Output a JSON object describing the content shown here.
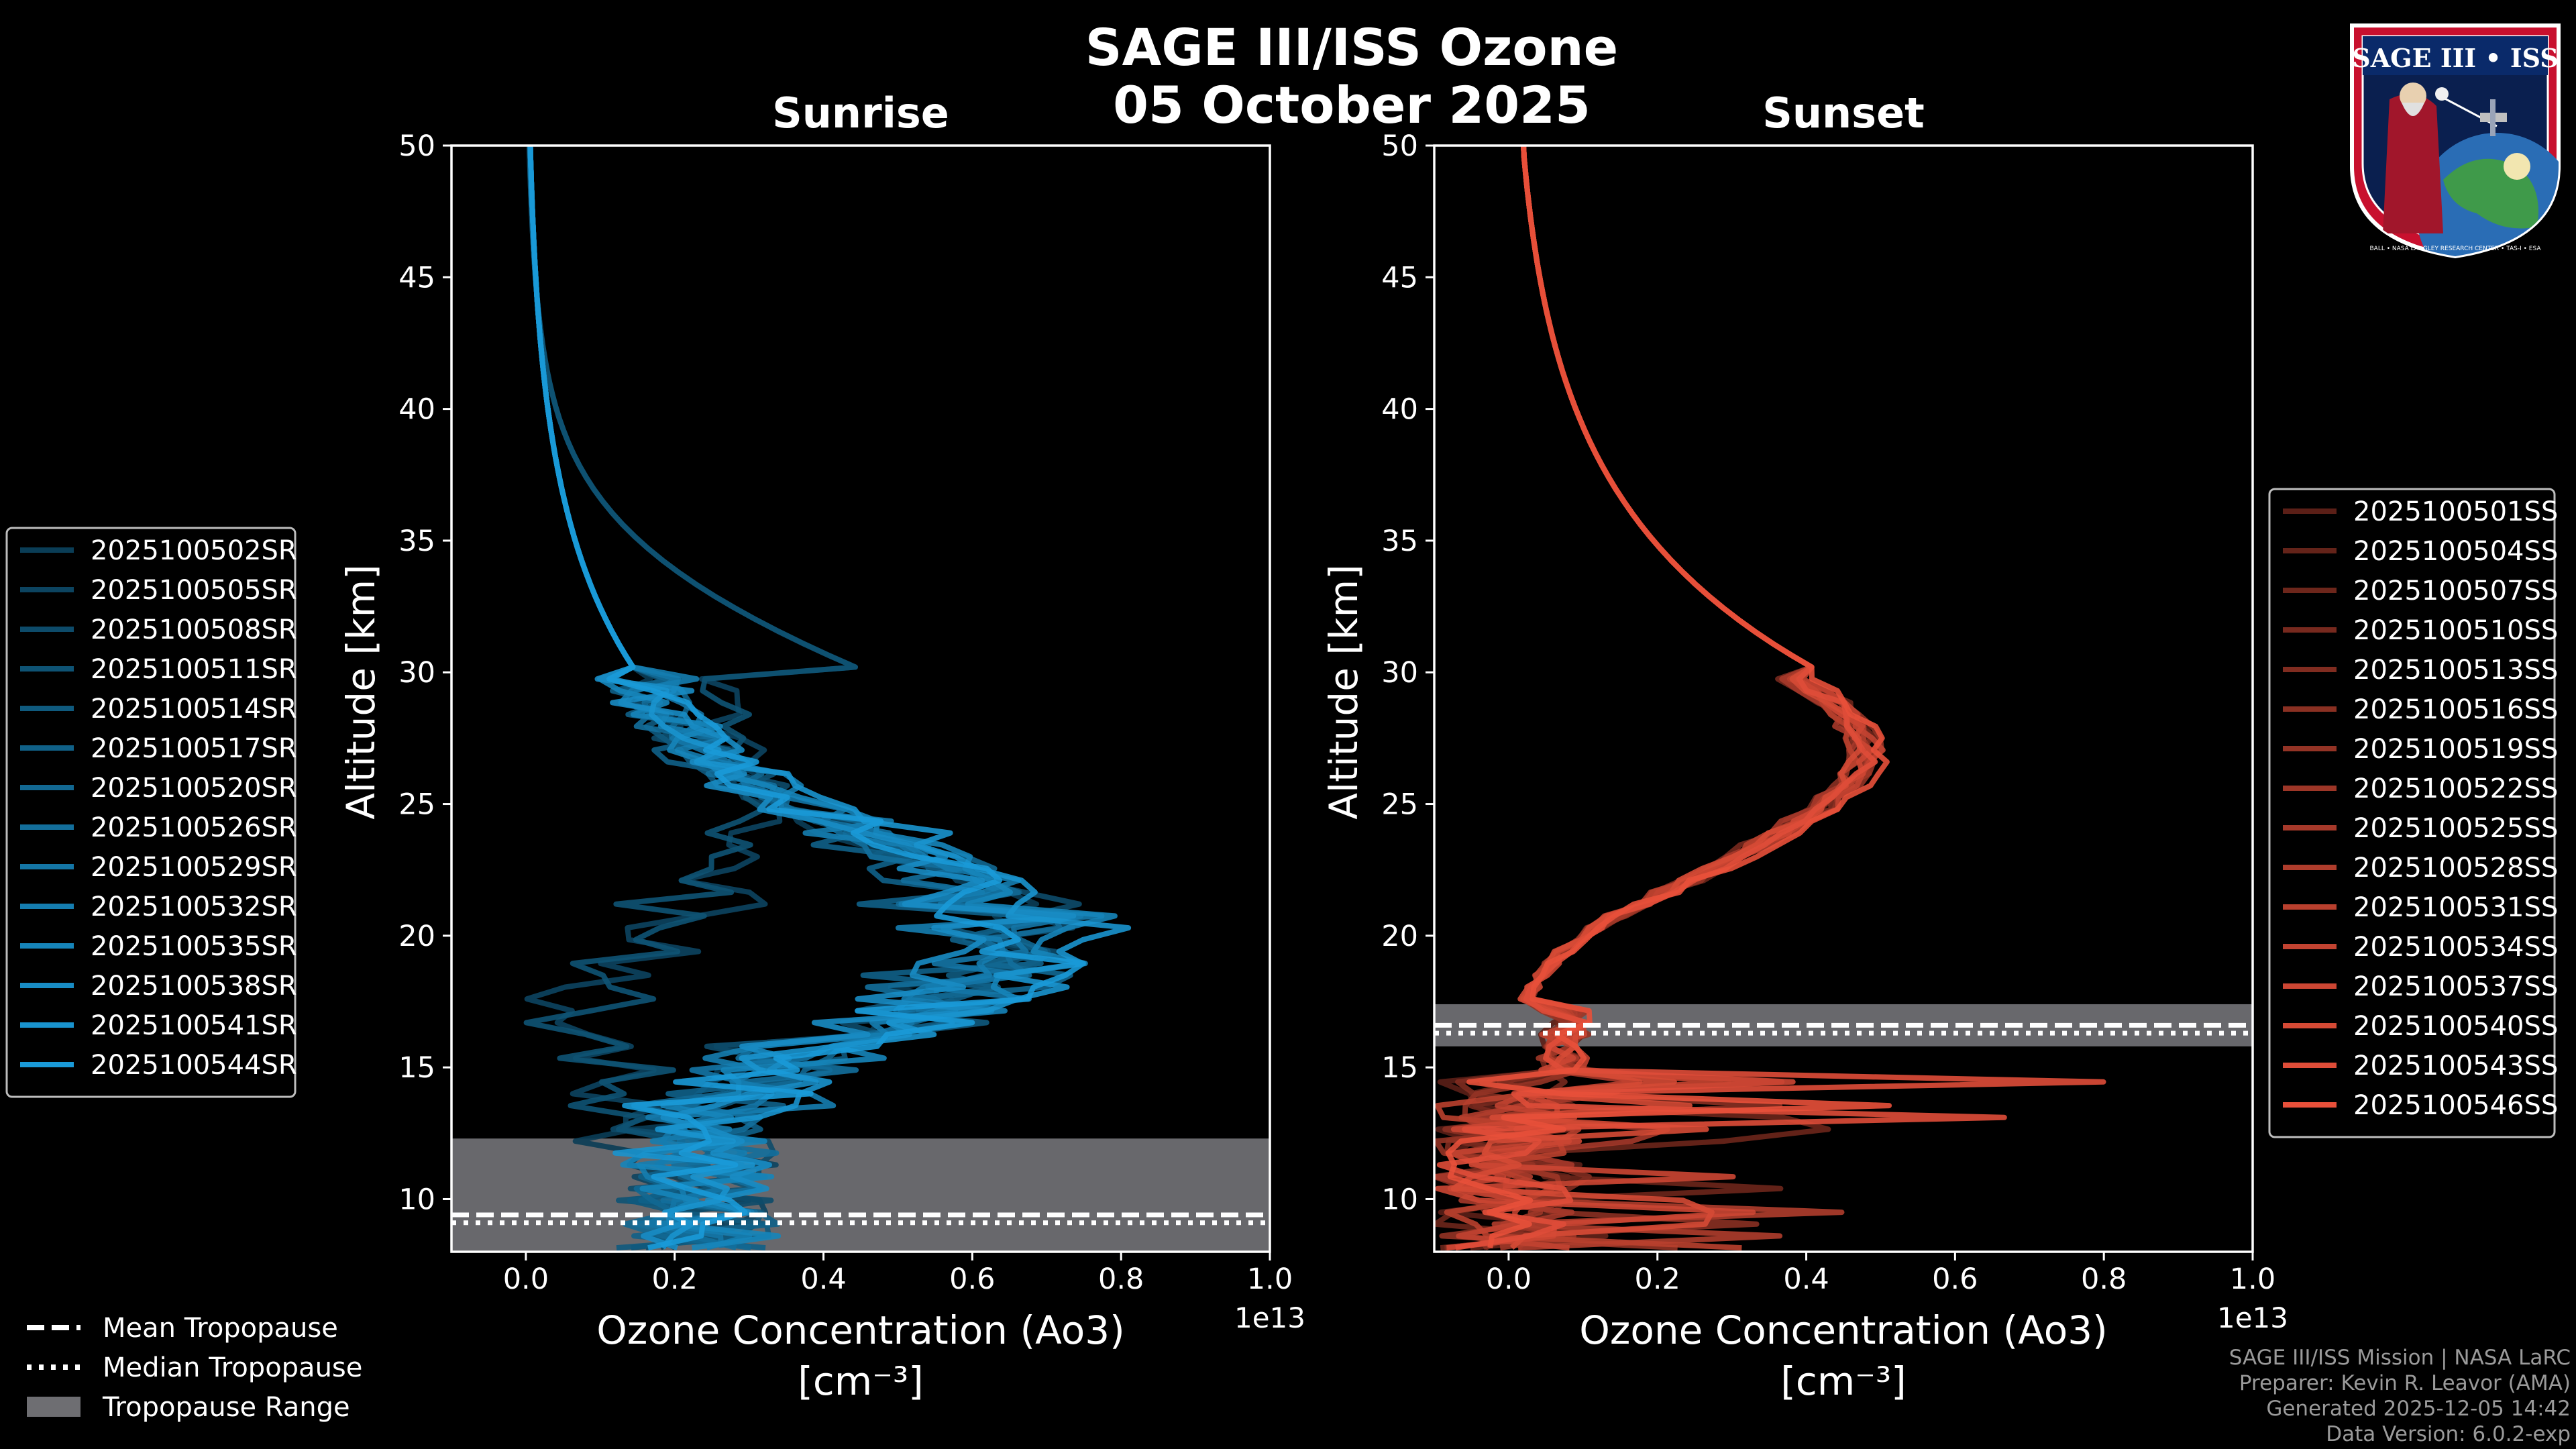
{
  "title_line1": "SAGE III/ISS Ozone",
  "title_line2": "05 October 2025",
  "logo": {
    "name": "SAGE III • ISS",
    "ring_text": "BALL • NASA LANGLEY RESEARCH CENTER • TAS-I • ESA"
  },
  "credits": [
    "SAGE III/ISS Mission | NASA LaRC",
    "Preparer: Kevin R. Leavor (AMA)",
    "Generated 2025-12-05 14:42",
    "Data Version: 6.0.2-exp"
  ],
  "tropopause_legend": [
    {
      "label": "Mean Tropopause",
      "style": "dashed"
    },
    {
      "label": "Median Tropopause",
      "style": "dotted"
    },
    {
      "label": "Tropopause Range",
      "style": "patch"
    }
  ],
  "chart_data": [
    {
      "type": "line",
      "title": "Sunrise",
      "xlabel_line1": "Ozone Concentration (Ao3)",
      "xlabel_line2": "[cm⁻³]",
      "ylabel": "Altitude [km]",
      "x_offset_label": "1e13",
      "xlim": [
        -0.1,
        1.0
      ],
      "ylim": [
        8,
        50
      ],
      "x_ticks": [
        0.0,
        0.2,
        0.4,
        0.6,
        0.8,
        1.0
      ],
      "x_tick_labels": [
        "0.0",
        "0.2",
        "0.4",
        "0.6",
        "0.8",
        "1.0"
      ],
      "y_ticks": [
        10,
        15,
        20,
        25,
        30,
        35,
        40,
        45,
        50
      ],
      "y_tick_labels": [
        "10",
        "15",
        "20",
        "25",
        "30",
        "35",
        "40",
        "45",
        "50"
      ],
      "tropopause": {
        "mean": 9.4,
        "median": 9.1,
        "range": [
          8.0,
          12.3
        ]
      },
      "legend_position": "left",
      "base_color": "#1a9ad8",
      "series": [
        {
          "name": "2025100502SR",
          "profile": "normal",
          "scale": 0.62,
          "noise": 0.06
        },
        {
          "name": "2025100505SR",
          "profile": "low",
          "scale": 0.3,
          "noise": 0.07
        },
        {
          "name": "2025100508SR",
          "profile": "normal",
          "scale": 0.64,
          "noise": 0.08
        },
        {
          "name": "2025100511SR",
          "profile": "low",
          "scale": 0.32,
          "noise": 0.06
        },
        {
          "name": "2025100514SR",
          "profile": "normal",
          "scale": 0.66,
          "noise": 0.07
        },
        {
          "name": "2025100517SR",
          "profile": "normal",
          "scale": 0.6,
          "noise": 0.09
        },
        {
          "name": "2025100520SR",
          "profile": "normal",
          "scale": 0.68,
          "noise": 0.06
        },
        {
          "name": "2025100526SR",
          "profile": "normal",
          "scale": 0.63,
          "noise": 0.08
        },
        {
          "name": "2025100529SR",
          "profile": "normal",
          "scale": 0.67,
          "noise": 0.07
        },
        {
          "name": "2025100532SR",
          "profile": "normal",
          "scale": 0.65,
          "noise": 0.1
        },
        {
          "name": "2025100535SR",
          "profile": "normal",
          "scale": 0.7,
          "noise": 0.07
        },
        {
          "name": "2025100538SR",
          "profile": "normal",
          "scale": 0.62,
          "noise": 0.08
        },
        {
          "name": "2025100541SR",
          "profile": "normal",
          "scale": 0.75,
          "noise": 0.06
        },
        {
          "name": "2025100544SR",
          "profile": "normal",
          "scale": 0.66,
          "noise": 0.07
        }
      ]
    },
    {
      "type": "line",
      "title": "Sunset",
      "xlabel_line1": "Ozone Concentration (Ao3)",
      "xlabel_line2": "[cm⁻³]",
      "ylabel": "Altitude [km]",
      "x_offset_label": "1e13",
      "xlim": [
        -0.1,
        1.0
      ],
      "ylim": [
        8,
        50
      ],
      "x_ticks": [
        0.0,
        0.2,
        0.4,
        0.6,
        0.8,
        1.0
      ],
      "x_tick_labels": [
        "0.0",
        "0.2",
        "0.4",
        "0.6",
        "0.8",
        "1.0"
      ],
      "y_ticks": [
        10,
        15,
        20,
        25,
        30,
        35,
        40,
        45,
        50
      ],
      "y_tick_labels": [
        "10",
        "15",
        "20",
        "25",
        "30",
        "35",
        "40",
        "45",
        "50"
      ],
      "tropopause": {
        "mean": 16.6,
        "median": 16.3,
        "range": [
          15.8,
          17.4
        ]
      },
      "legend_position": "right",
      "base_color": "#e8503a",
      "series": [
        {
          "name": "2025100501SS",
          "scale": 0.48,
          "spike": 0.32
        },
        {
          "name": "2025100504SS",
          "scale": 0.47,
          "spike": 0.2
        },
        {
          "name": "2025100507SS",
          "scale": 0.49,
          "spike": 0.45
        },
        {
          "name": "2025100510SS",
          "scale": 0.46,
          "spike": 0.28
        },
        {
          "name": "2025100513SS",
          "scale": 0.48,
          "spike": 0.18
        },
        {
          "name": "2025100516SS",
          "scale": 0.47,
          "spike": 0.38
        },
        {
          "name": "2025100519SS",
          "scale": 0.49,
          "spike": 0.24
        },
        {
          "name": "2025100522SS",
          "scale": 0.48,
          "spike": 0.3
        },
        {
          "name": "2025100525SS",
          "scale": 0.46,
          "spike": 0.22
        },
        {
          "name": "2025100528SS",
          "scale": 0.48,
          "spike": 0.6
        },
        {
          "name": "2025100531SS",
          "scale": 0.47,
          "spike": 0.35
        },
        {
          "name": "2025100534SS",
          "scale": 0.49,
          "spike": 0.26
        },
        {
          "name": "2025100537SS",
          "scale": 0.48,
          "spike": 0.42
        },
        {
          "name": "2025100540SS",
          "scale": 0.47,
          "spike": 0.3
        },
        {
          "name": "2025100543SS",
          "scale": 0.48,
          "spike": 0.82
        },
        {
          "name": "2025100546SS",
          "scale": 0.5,
          "spike": 0.55
        }
      ]
    }
  ]
}
